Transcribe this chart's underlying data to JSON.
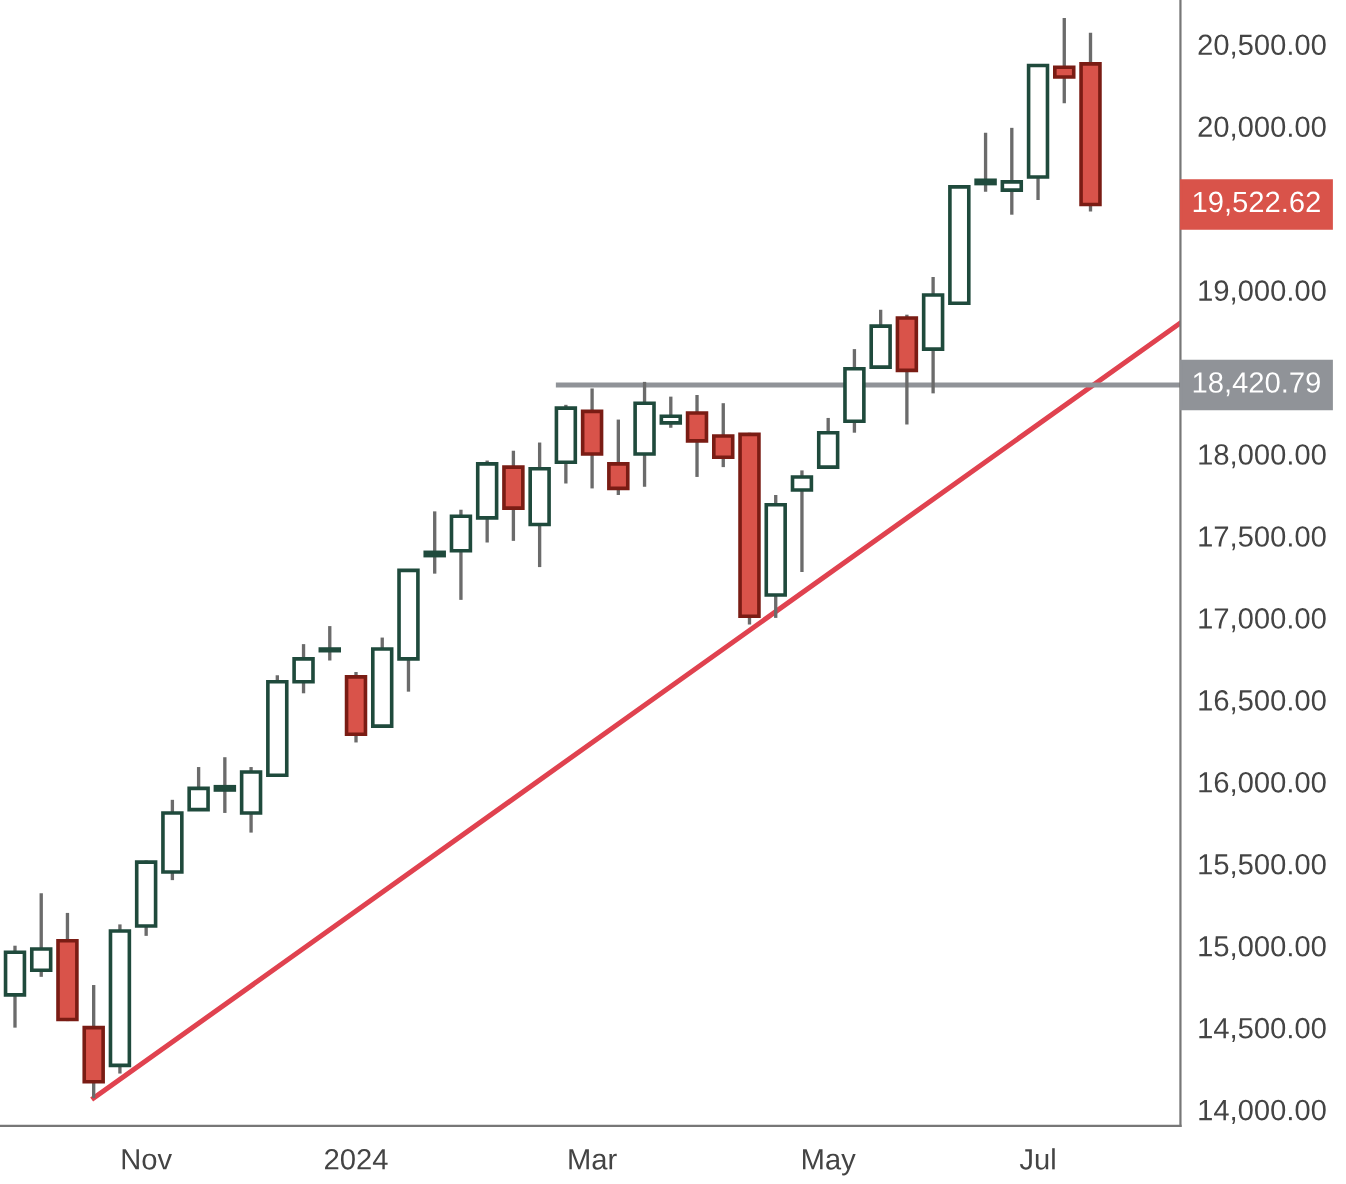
{
  "chart_data": {
    "type": "candlestick",
    "x": [
      "2023-10-02",
      "2023-10-09",
      "2023-10-16",
      "2023-10-23",
      "2023-10-30",
      "2023-11-06",
      "2023-11-13",
      "2023-11-20",
      "2023-11-27",
      "2023-12-04",
      "2023-12-11",
      "2023-12-18",
      "2023-12-25",
      "2024-01-01",
      "2024-01-08",
      "2024-01-15",
      "2024-01-22",
      "2024-01-29",
      "2024-02-05",
      "2024-02-12",
      "2024-02-19",
      "2024-02-26",
      "2024-03-04",
      "2024-03-11",
      "2024-03-18",
      "2024-03-25",
      "2024-04-01",
      "2024-04-08",
      "2024-04-15",
      "2024-04-22",
      "2024-04-29",
      "2024-05-06",
      "2024-05-13",
      "2024-05-20",
      "2024-05-27",
      "2024-06-03",
      "2024-06-10",
      "2024-06-17",
      "2024-06-24",
      "2024-07-01",
      "2024-07-08",
      "2024-07-15"
    ],
    "ohlc": [
      [
        14700,
        15000,
        14500,
        14960
      ],
      [
        14850,
        15320,
        14810,
        14980
      ],
      [
        15030,
        15200,
        14540,
        14550
      ],
      [
        14500,
        14760,
        14070,
        14170
      ],
      [
        14270,
        15130,
        14220,
        15090
      ],
      [
        15120,
        15520,
        15060,
        15510
      ],
      [
        15450,
        15890,
        15400,
        15810
      ],
      [
        15830,
        16090,
        15830,
        15960
      ],
      [
        15950,
        16150,
        15810,
        15970
      ],
      [
        15810,
        16090,
        15690,
        16060
      ],
      [
        16040,
        16650,
        16040,
        16610
      ],
      [
        16610,
        16840,
        16540,
        16750
      ],
      [
        16800,
        16950,
        16740,
        16810
      ],
      [
        16640,
        16670,
        16240,
        16290
      ],
      [
        16340,
        16880,
        16340,
        16810
      ],
      [
        16750,
        17290,
        16550,
        17290
      ],
      [
        17380,
        17650,
        17270,
        17400
      ],
      [
        17410,
        17660,
        17110,
        17620
      ],
      [
        17610,
        17960,
        17460,
        17940
      ],
      [
        17920,
        18020,
        17470,
        17670
      ],
      [
        17570,
        18070,
        17310,
        17910
      ],
      [
        17950,
        18300,
        17820,
        18280
      ],
      [
        18260,
        18400,
        17790,
        18000
      ],
      [
        17940,
        18210,
        17750,
        17790
      ],
      [
        18000,
        18440,
        17800,
        18310
      ],
      [
        18190,
        18350,
        18160,
        18230
      ],
      [
        18250,
        18360,
        17860,
        18080
      ],
      [
        18110,
        18310,
        17920,
        17980
      ],
      [
        18120,
        18130,
        16960,
        17010
      ],
      [
        17140,
        17750,
        17000,
        17690
      ],
      [
        17780,
        17900,
        17280,
        17860
      ],
      [
        17920,
        18220,
        17920,
        18130
      ],
      [
        18200,
        18640,
        18130,
        18520
      ],
      [
        18530,
        18880,
        18530,
        18780
      ],
      [
        18830,
        18850,
        18180,
        18510
      ],
      [
        18640,
        19080,
        18370,
        18970
      ],
      [
        18920,
        19630,
        18920,
        19630
      ],
      [
        19650,
        19960,
        19600,
        19670
      ],
      [
        19610,
        19990,
        19460,
        19660
      ],
      [
        19690,
        20380,
        19550,
        20370
      ],
      [
        20360,
        20660,
        20140,
        20300
      ],
      [
        20380,
        20570,
        19480,
        19522.62
      ]
    ],
    "colors": [
      "#ffffff",
      "#ffffff",
      "#d9534a",
      "#d9534a",
      "#ffffff",
      "#ffffff",
      "#ffffff",
      "#ffffff",
      "#ffffff",
      "#ffffff",
      "#ffffff",
      "#ffffff",
      "#ffffff",
      "#d9534a",
      "#ffffff",
      "#ffffff",
      "#ffffff",
      "#ffffff",
      "#ffffff",
      "#d9534a",
      "#ffffff",
      "#ffffff",
      "#d9534a",
      "#d9534a",
      "#ffffff",
      "#ffffff",
      "#d9534a",
      "#d9534a",
      "#d9534a",
      "#ffffff",
      "#ffffff",
      "#ffffff",
      "#ffffff",
      "#ffffff",
      "#d9534a",
      "#ffffff",
      "#ffffff",
      "#ffffff",
      "#ffffff",
      "#ffffff",
      "#d9534a",
      "#d9534a"
    ],
    "series": [
      {
        "type": "line",
        "color": "#e0424f",
        "x": [
          "2023-10-23",
          "2024-08-08"
        ],
        "values": [
          14070,
          18800
        ]
      },
      {
        "type": "line",
        "color": "#909398",
        "x": [
          "2024-02-24",
          "2024-08-08"
        ],
        "values": [
          18420.79,
          18420.79
        ]
      }
    ],
    "annotations": [
      "19,522.62",
      {
        "text": "18,420.79",
        "x": "2024-08-08",
        "y": 18420.79
      }
    ],
    "xlim": [
      "2023-09-28",
      "2024-08-08"
    ],
    "xticks": [
      {
        "value": "2023-11-06",
        "label": "Nov"
      },
      {
        "value": "2024-01-01",
        "label": "2024"
      },
      {
        "value": "2024-03-04",
        "label": "Mar"
      },
      {
        "value": "2024-05-06",
        "label": "May"
      },
      {
        "value": "2024-07-01",
        "label": "Jul"
      }
    ],
    "ylim": [
      13900,
      20770
    ],
    "yticks": [
      {
        "value": 14000,
        "label": "14,000.00"
      },
      {
        "value": 14500,
        "label": "14,500.00"
      },
      {
        "value": 15000,
        "label": "15,000.00"
      },
      {
        "value": 15500,
        "label": "15,500.00"
      },
      {
        "value": 16000,
        "label": "16,000.00"
      },
      {
        "value": 16500,
        "label": "16,500.00"
      },
      {
        "value": 17000,
        "label": "17,000.00"
      },
      {
        "value": 17500,
        "label": "17,500.00"
      },
      {
        "value": 18000,
        "label": "18,000.00"
      },
      {
        "value": 19000,
        "label": "19,000.00"
      },
      {
        "value": 20000,
        "label": "20,000.00"
      },
      {
        "value": 20500,
        "label": "20,500.00"
      }
    ],
    "grid": false,
    "legend": false
  }
}
